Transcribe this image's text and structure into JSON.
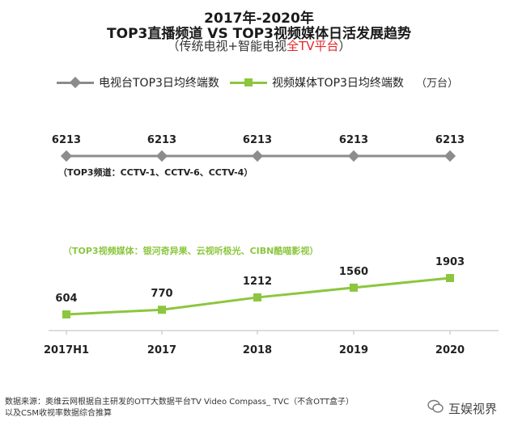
{
  "title": {
    "line1": "2017年-2020年",
    "line2": "TOP3直播频道 VS TOP3视频媒体日活发展趋势",
    "line3_prefix": "（传统电视+智能电视",
    "line3_highlight": "全TV平台",
    "line3_suffix": "）"
  },
  "legend": {
    "tv_label": "电视台TOP3日均终端数",
    "video_label": "视频媒体TOP3日均终端数",
    "unit": "（万台）"
  },
  "notes": {
    "tv_channels": "（TOP3频道：CCTV-1、CCTV-6、CCTV-4）",
    "video_media": "（TOP3视频媒体：银河奇异果、云视听极光、CIBN酷喵影视）"
  },
  "source": {
    "line1": "数据来源：奥维云网根据自主研发的OTT大数据平台TV Video Compass_ TVC（不含OTT盒子）",
    "line2": "以及CSM收视率数据综合推算"
  },
  "brand": {
    "name": "互娱视界",
    "logo_icon": "wechat-icon"
  },
  "colors": {
    "tv_series": "#8c8c8c",
    "video_series": "#8cc63f",
    "highlight": "#e8262a",
    "axis": "#bbbbbb"
  },
  "chart_data": {
    "type": "line",
    "categories": [
      "2017H1",
      "2017",
      "2018",
      "2019",
      "2020"
    ],
    "series": [
      {
        "name": "电视台TOP3日均终端数",
        "values": [
          6213,
          6213,
          6213,
          6213,
          6213
        ]
      },
      {
        "name": "视频媒体TOP3日均终端数",
        "values": [
          604,
          770,
          1212,
          1560,
          1903
        ]
      }
    ],
    "title": "2017年-2020年 TOP3直播频道 VS TOP3视频媒体日活发展趋势",
    "unit": "万台",
    "legend_position": "top",
    "grid": false
  }
}
